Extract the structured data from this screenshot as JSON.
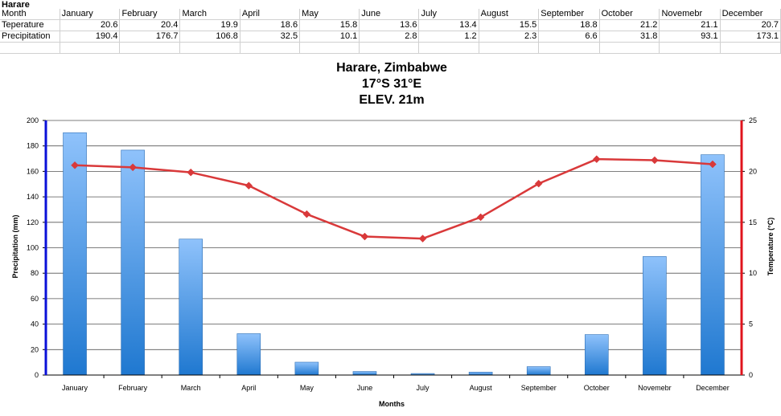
{
  "sheet": {
    "title": "Harare",
    "header_label": "Month",
    "months": [
      "January",
      "February",
      "March",
      "April",
      "May",
      "June",
      "July",
      "August",
      "September",
      "October",
      "Novemebr",
      "December"
    ],
    "rows": [
      {
        "label": "Teperature",
        "values": [
          "20.6",
          "20.4",
          "19.9",
          "18.6",
          "15.8",
          "13.6",
          "13.4",
          "15.5",
          "18.8",
          "21.2",
          "21.1",
          "20.7"
        ]
      },
      {
        "label": "Precipitation",
        "values": [
          "190.4",
          "176.7",
          "106.8",
          "32.5",
          "10.1",
          "2.8",
          "1.2",
          "2.3",
          "6.6",
          "31.8",
          "93.1",
          "173.1"
        ]
      }
    ]
  },
  "chart_data": {
    "type": "bar",
    "title_lines": [
      "Harare, Zimbabwe",
      "17°S 31°E",
      "ELEV. 21m"
    ],
    "xlabel": "Months",
    "ylabel": "Precipitation (mm)",
    "y2label": "Temperature (°C)",
    "categories": [
      "January",
      "February",
      "March",
      "April",
      "May",
      "June",
      "July",
      "August",
      "September",
      "October",
      "Novemebr",
      "December"
    ],
    "series": [
      {
        "type": "bar",
        "axis": "left",
        "values": [
          190.4,
          176.7,
          106.8,
          32.5,
          10.1,
          2.8,
          1.2,
          2.3,
          6.6,
          31.8,
          93.1,
          173.1
        ]
      },
      {
        "type": "line",
        "axis": "right",
        "values": [
          20.6,
          20.4,
          19.9,
          18.6,
          15.8,
          13.6,
          13.4,
          15.5,
          18.8,
          21.2,
          21.1,
          20.7
        ]
      }
    ],
    "ylim": [
      0,
      200
    ],
    "yticks": [
      0,
      20,
      40,
      60,
      80,
      100,
      120,
      140,
      160,
      180,
      200
    ],
    "y2lim": [
      0,
      25
    ],
    "y2ticks": [
      0,
      5,
      10,
      15,
      20,
      25
    ],
    "grid": true,
    "legend": "none",
    "colors": {
      "bar_top": "#8fc2fb",
      "bar_bottom": "#1f78d0",
      "bar_edge": "#2e6fb5",
      "line": "#d9393a",
      "left_axis": "#0a10d8",
      "right_axis": "#e0141c",
      "grid": "#555555"
    }
  }
}
